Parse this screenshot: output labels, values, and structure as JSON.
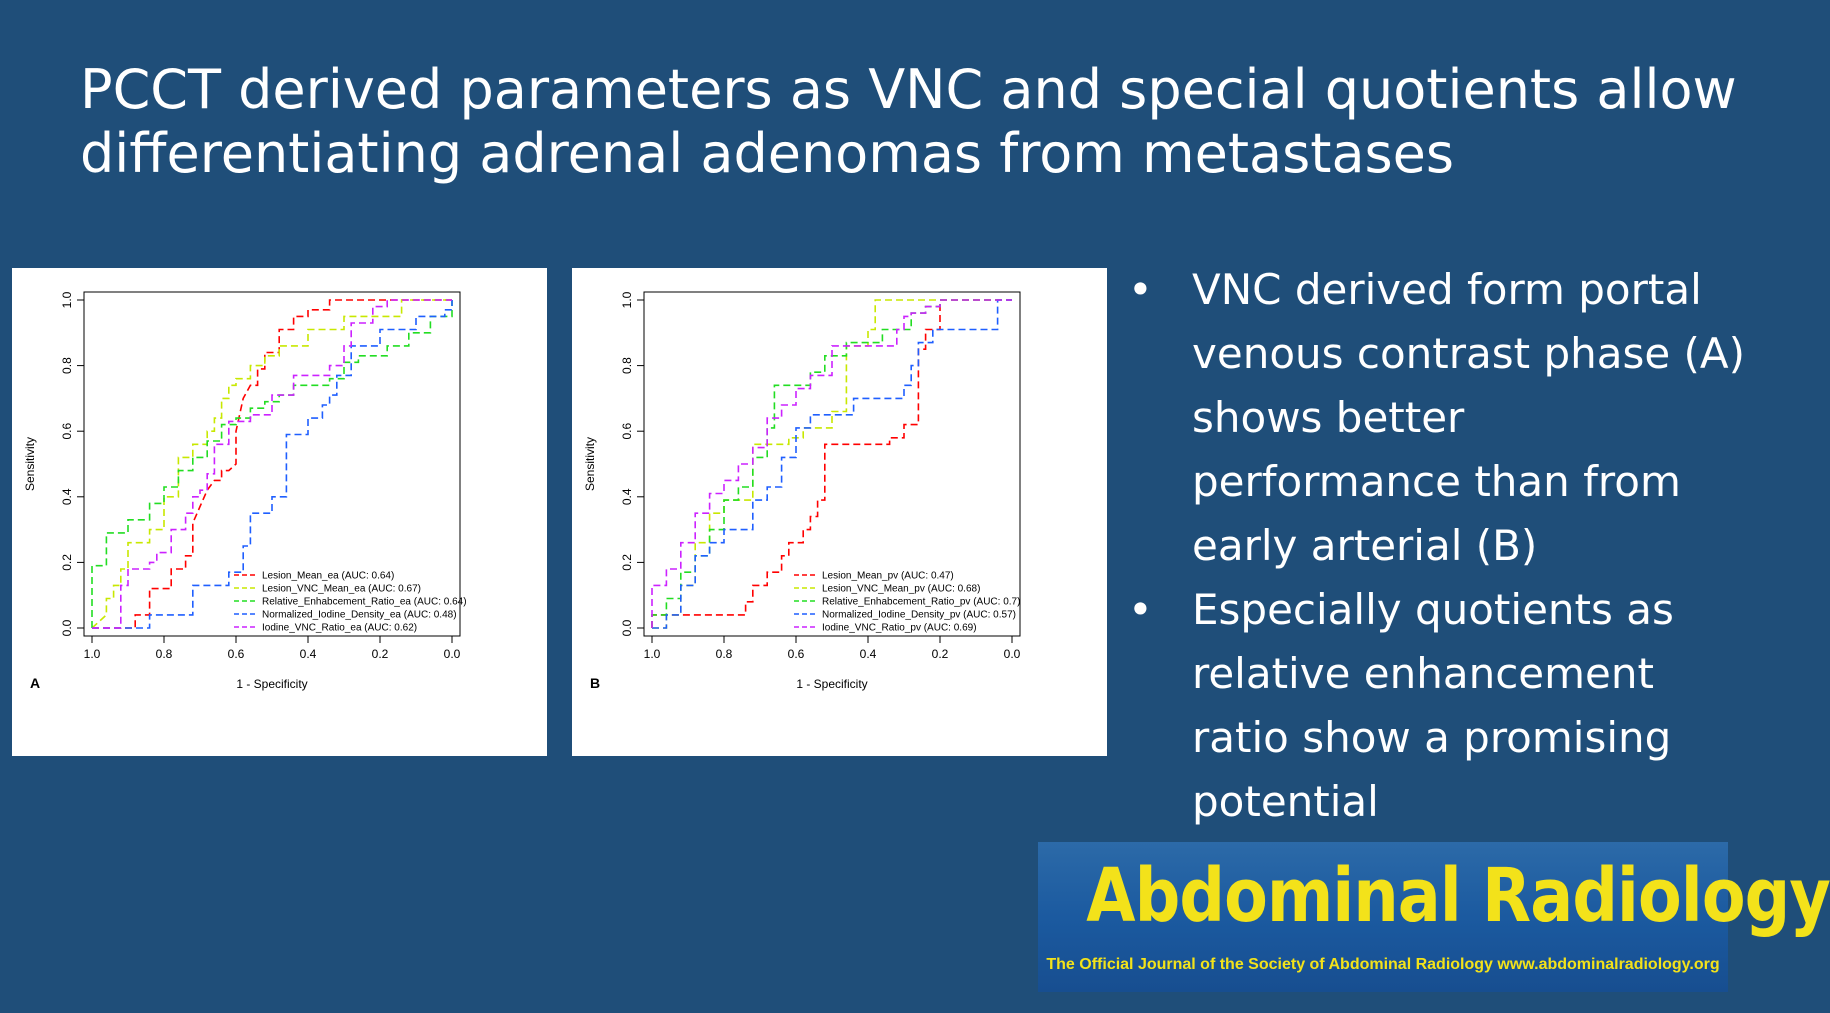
{
  "slide": {
    "title_lines": [
      "PCCT derived parameters as VNC and special quotients allow",
      "differentiating adrenal adenomas from metastases"
    ],
    "bullet_symbol": "•",
    "bullets": [
      [
        "VNC derived form portal",
        "venous contrast phase (A)",
        "shows better",
        "performance than from",
        "early arterial (B)"
      ],
      [
        "Especially quotients as",
        "relative enhancement",
        "ratio show a promising",
        "potential"
      ]
    ]
  },
  "journal": {
    "name": "Abdominal Radiology",
    "tagline": "The Official Journal of the Society of Abdominal Radiology www.abdominalradiology.org",
    "name_color": "#f3e21a",
    "bg_color": "#1b5aa0"
  },
  "colors": {
    "background": "#1f4e79"
  },
  "chart_data": [
    {
      "type": "line",
      "panel_label": "A",
      "xlabel": "1 - Specificity",
      "ylabel": "Sensitivity",
      "xlim": [
        1.0,
        0.0
      ],
      "ylim": [
        0.0,
        1.0
      ],
      "x_reversed": true,
      "xticks": [
        "1.0",
        "0.8",
        "0.6",
        "0.4",
        "0.2",
        "0.0"
      ],
      "yticks": [
        "0.0",
        "0.2",
        "0.4",
        "0.6",
        "0.8",
        "1.0"
      ],
      "grid": false,
      "legend_position": "bottom-right",
      "line_style": "dashed",
      "series": [
        {
          "name": "Lesion_Mean_ea (AUC: 0.64)",
          "color": "#ff0000",
          "x": [
            1.0,
            0.88,
            0.88,
            0.84,
            0.84,
            0.78,
            0.78,
            0.74,
            0.74,
            0.72,
            0.72,
            0.7,
            0.68,
            0.66,
            0.64,
            0.64,
            0.62,
            0.6,
            0.6,
            0.58,
            0.56,
            0.54,
            0.54,
            0.52,
            0.52,
            0.48,
            0.48,
            0.44,
            0.44,
            0.4,
            0.4,
            0.34,
            0.34,
            0.0
          ],
          "y": [
            0.0,
            0.0,
            0.04,
            0.04,
            0.12,
            0.12,
            0.18,
            0.18,
            0.22,
            0.22,
            0.32,
            0.37,
            0.42,
            0.45,
            0.45,
            0.48,
            0.48,
            0.5,
            0.6,
            0.7,
            0.74,
            0.74,
            0.79,
            0.79,
            0.84,
            0.84,
            0.91,
            0.91,
            0.95,
            0.95,
            0.97,
            0.97,
            1.0,
            1.0
          ]
        },
        {
          "name": "Lesion_VNC_Mean_ea (AUC: 0.67)",
          "color": "#c8e800",
          "x": [
            1.0,
            0.96,
            0.96,
            0.94,
            0.94,
            0.92,
            0.92,
            0.9,
            0.9,
            0.84,
            0.84,
            0.8,
            0.8,
            0.76,
            0.76,
            0.72,
            0.72,
            0.68,
            0.68,
            0.66,
            0.66,
            0.64,
            0.64,
            0.62,
            0.62,
            0.6,
            0.6,
            0.56,
            0.56,
            0.52,
            0.52,
            0.48,
            0.48,
            0.4,
            0.4,
            0.3,
            0.3,
            0.14,
            0.14,
            0.0
          ],
          "y": [
            0.0,
            0.04,
            0.09,
            0.09,
            0.13,
            0.13,
            0.18,
            0.18,
            0.26,
            0.26,
            0.3,
            0.3,
            0.4,
            0.4,
            0.52,
            0.52,
            0.56,
            0.56,
            0.6,
            0.6,
            0.64,
            0.64,
            0.7,
            0.7,
            0.74,
            0.74,
            0.76,
            0.76,
            0.8,
            0.8,
            0.83,
            0.83,
            0.86,
            0.86,
            0.91,
            0.91,
            0.95,
            0.95,
            1.0,
            1.0
          ]
        },
        {
          "name": "Relative_Enhabcement_Ratio_ea (AUC: 0.64)",
          "color": "#22dd22",
          "x": [
            1.0,
            1.0,
            0.96,
            0.96,
            0.9,
            0.9,
            0.84,
            0.84,
            0.8,
            0.8,
            0.76,
            0.76,
            0.72,
            0.72,
            0.68,
            0.68,
            0.64,
            0.64,
            0.6,
            0.6,
            0.56,
            0.56,
            0.52,
            0.52,
            0.48,
            0.48,
            0.44,
            0.44,
            0.34,
            0.34,
            0.3,
            0.3,
            0.26,
            0.26,
            0.18,
            0.18,
            0.12,
            0.12,
            0.06,
            0.06,
            0.0,
            0.0
          ],
          "y": [
            0.0,
            0.19,
            0.19,
            0.29,
            0.29,
            0.33,
            0.33,
            0.38,
            0.38,
            0.43,
            0.43,
            0.48,
            0.48,
            0.52,
            0.52,
            0.57,
            0.57,
            0.62,
            0.62,
            0.64,
            0.64,
            0.67,
            0.67,
            0.69,
            0.69,
            0.71,
            0.71,
            0.74,
            0.74,
            0.76,
            0.76,
            0.81,
            0.81,
            0.83,
            0.83,
            0.86,
            0.86,
            0.9,
            0.9,
            0.95,
            0.95,
            1.0
          ]
        },
        {
          "name": "Normalized_Iodine_Density_ea (AUC: 0.48)",
          "color": "#1f5fff",
          "x": [
            1.0,
            0.92,
            0.92,
            0.84,
            0.84,
            0.72,
            0.72,
            0.62,
            0.62,
            0.58,
            0.58,
            0.56,
            0.56,
            0.5,
            0.5,
            0.46,
            0.46,
            0.4,
            0.4,
            0.36,
            0.36,
            0.34,
            0.34,
            0.32,
            0.32,
            0.28,
            0.28,
            0.2,
            0.2,
            0.1,
            0.1,
            0.02,
            0.02,
            0.0,
            0.0
          ],
          "y": [
            0.0,
            0.0,
            0.0,
            0.0,
            0.04,
            0.04,
            0.13,
            0.13,
            0.17,
            0.17,
            0.25,
            0.25,
            0.35,
            0.35,
            0.4,
            0.4,
            0.59,
            0.59,
            0.64,
            0.64,
            0.68,
            0.68,
            0.71,
            0.71,
            0.77,
            0.77,
            0.86,
            0.86,
            0.91,
            0.91,
            0.95,
            0.95,
            0.97,
            0.97,
            1.0
          ]
        },
        {
          "name": "Iodine_VNC_Ratio_ea (AUC: 0.62)",
          "color": "#cc22ff",
          "x": [
            1.0,
            0.92,
            0.92,
            0.9,
            0.9,
            0.84,
            0.84,
            0.82,
            0.82,
            0.78,
            0.78,
            0.74,
            0.74,
            0.72,
            0.72,
            0.7,
            0.7,
            0.68,
            0.68,
            0.66,
            0.66,
            0.62,
            0.62,
            0.56,
            0.56,
            0.5,
            0.5,
            0.44,
            0.44,
            0.34,
            0.34,
            0.3,
            0.3,
            0.28,
            0.28,
            0.22,
            0.22,
            0.18,
            0.18,
            0.0
          ],
          "y": [
            0.0,
            0.0,
            0.13,
            0.13,
            0.18,
            0.18,
            0.2,
            0.2,
            0.23,
            0.23,
            0.3,
            0.3,
            0.35,
            0.35,
            0.4,
            0.4,
            0.42,
            0.42,
            0.47,
            0.47,
            0.56,
            0.56,
            0.63,
            0.63,
            0.65,
            0.65,
            0.71,
            0.71,
            0.77,
            0.77,
            0.8,
            0.8,
            0.86,
            0.86,
            0.93,
            0.93,
            0.98,
            0.98,
            1.0,
            1.0
          ]
        }
      ]
    },
    {
      "type": "line",
      "panel_label": "B",
      "xlabel": "1 - Specificity",
      "ylabel": "Sensitivity",
      "xlim": [
        1.0,
        0.0
      ],
      "ylim": [
        0.0,
        1.0
      ],
      "x_reversed": true,
      "xticks": [
        "1.0",
        "0.8",
        "0.6",
        "0.4",
        "0.2",
        "0.0"
      ],
      "yticks": [
        "0.0",
        "0.2",
        "0.4",
        "0.6",
        "0.8",
        "1.0"
      ],
      "grid": false,
      "legend_position": "bottom-right",
      "line_style": "dashed",
      "series": [
        {
          "name": "Lesion_Mean_pv (AUC: 0.47)",
          "color": "#ff0000",
          "x": [
            1.0,
            1.0,
            0.74,
            0.74,
            0.72,
            0.72,
            0.68,
            0.68,
            0.64,
            0.64,
            0.62,
            0.62,
            0.58,
            0.58,
            0.56,
            0.56,
            0.54,
            0.54,
            0.52,
            0.52,
            0.34,
            0.34,
            0.3,
            0.3,
            0.26,
            0.26,
            0.24,
            0.24,
            0.2,
            0.2,
            0.0
          ],
          "y": [
            0.0,
            0.04,
            0.04,
            0.08,
            0.08,
            0.13,
            0.13,
            0.17,
            0.17,
            0.22,
            0.22,
            0.26,
            0.26,
            0.3,
            0.3,
            0.34,
            0.34,
            0.39,
            0.39,
            0.56,
            0.56,
            0.58,
            0.58,
            0.62,
            0.62,
            0.85,
            0.85,
            0.91,
            0.91,
            1.0,
            1.0
          ]
        },
        {
          "name": "Lesion_VNC_Mean_pv (AUC: 0.68)",
          "color": "#c8e800",
          "x": [
            1.0,
            0.96,
            0.96,
            0.92,
            0.92,
            0.88,
            0.88,
            0.84,
            0.84,
            0.8,
            0.8,
            0.72,
            0.72,
            0.62,
            0.62,
            0.58,
            0.58,
            0.5,
            0.5,
            0.46,
            0.46,
            0.4,
            0.4,
            0.38,
            0.38,
            0.22,
            0.22,
            0.0
          ],
          "y": [
            0.0,
            0.0,
            0.04,
            0.04,
            0.13,
            0.13,
            0.26,
            0.26,
            0.35,
            0.35,
            0.39,
            0.39,
            0.56,
            0.56,
            0.58,
            0.58,
            0.61,
            0.61,
            0.66,
            0.66,
            0.86,
            0.86,
            0.91,
            0.91,
            1.0,
            1.0,
            1.0,
            1.0
          ]
        },
        {
          "name": "Relative_Enhabcement_Ratio_pv (AUC: 0.7)",
          "color": "#22dd22",
          "x": [
            1.0,
            1.0,
            0.96,
            0.96,
            0.92,
            0.92,
            0.88,
            0.88,
            0.84,
            0.84,
            0.8,
            0.8,
            0.76,
            0.76,
            0.72,
            0.72,
            0.68,
            0.68,
            0.66,
            0.66,
            0.62,
            0.62,
            0.56,
            0.56,
            0.52,
            0.52,
            0.46,
            0.46,
            0.36,
            0.36,
            0.28,
            0.28,
            0.24,
            0.24,
            0.2,
            0.2,
            0.18,
            0.18,
            0.0
          ],
          "y": [
            0.0,
            0.04,
            0.04,
            0.09,
            0.09,
            0.17,
            0.17,
            0.22,
            0.22,
            0.3,
            0.3,
            0.39,
            0.39,
            0.43,
            0.43,
            0.52,
            0.52,
            0.61,
            0.61,
            0.74,
            0.74,
            0.74,
            0.74,
            0.78,
            0.78,
            0.83,
            0.83,
            0.87,
            0.87,
            0.91,
            0.91,
            0.96,
            0.96,
            0.98,
            0.98,
            1.0,
            1.0,
            1.0,
            1.0
          ]
        },
        {
          "name": "Normalized_Iodine_Density_pv (AUC: 0.57)",
          "color": "#1f5fff",
          "x": [
            1.0,
            0.96,
            0.96,
            0.92,
            0.92,
            0.88,
            0.88,
            0.84,
            0.84,
            0.8,
            0.8,
            0.72,
            0.72,
            0.68,
            0.68,
            0.64,
            0.64,
            0.6,
            0.6,
            0.56,
            0.56,
            0.44,
            0.44,
            0.3,
            0.3,
            0.28,
            0.28,
            0.26,
            0.26,
            0.22,
            0.22,
            0.04,
            0.04,
            0.0
          ],
          "y": [
            0.0,
            0.0,
            0.04,
            0.04,
            0.13,
            0.13,
            0.22,
            0.22,
            0.26,
            0.26,
            0.3,
            0.3,
            0.39,
            0.39,
            0.43,
            0.43,
            0.52,
            0.52,
            0.61,
            0.61,
            0.65,
            0.65,
            0.7,
            0.7,
            0.74,
            0.74,
            0.8,
            0.8,
            0.87,
            0.87,
            0.91,
            0.91,
            1.0,
            1.0
          ]
        },
        {
          "name": "Iodine_VNC_Ratio_pv (AUC: 0.69)",
          "color": "#cc22ff",
          "x": [
            1.0,
            1.0,
            0.96,
            0.96,
            0.92,
            0.92,
            0.88,
            0.88,
            0.84,
            0.84,
            0.8,
            0.8,
            0.76,
            0.76,
            0.72,
            0.72,
            0.68,
            0.68,
            0.64,
            0.64,
            0.6,
            0.6,
            0.56,
            0.56,
            0.5,
            0.5,
            0.32,
            0.32,
            0.3,
            0.3,
            0.28,
            0.28,
            0.24,
            0.24,
            0.2,
            0.2,
            0.0
          ],
          "y": [
            0.0,
            0.13,
            0.13,
            0.18,
            0.18,
            0.26,
            0.26,
            0.35,
            0.35,
            0.41,
            0.41,
            0.45,
            0.45,
            0.5,
            0.5,
            0.55,
            0.55,
            0.64,
            0.64,
            0.68,
            0.68,
            0.73,
            0.73,
            0.77,
            0.77,
            0.86,
            0.86,
            0.91,
            0.91,
            0.95,
            0.95,
            0.96,
            0.96,
            0.98,
            0.98,
            1.0,
            1.0
          ]
        }
      ]
    }
  ]
}
